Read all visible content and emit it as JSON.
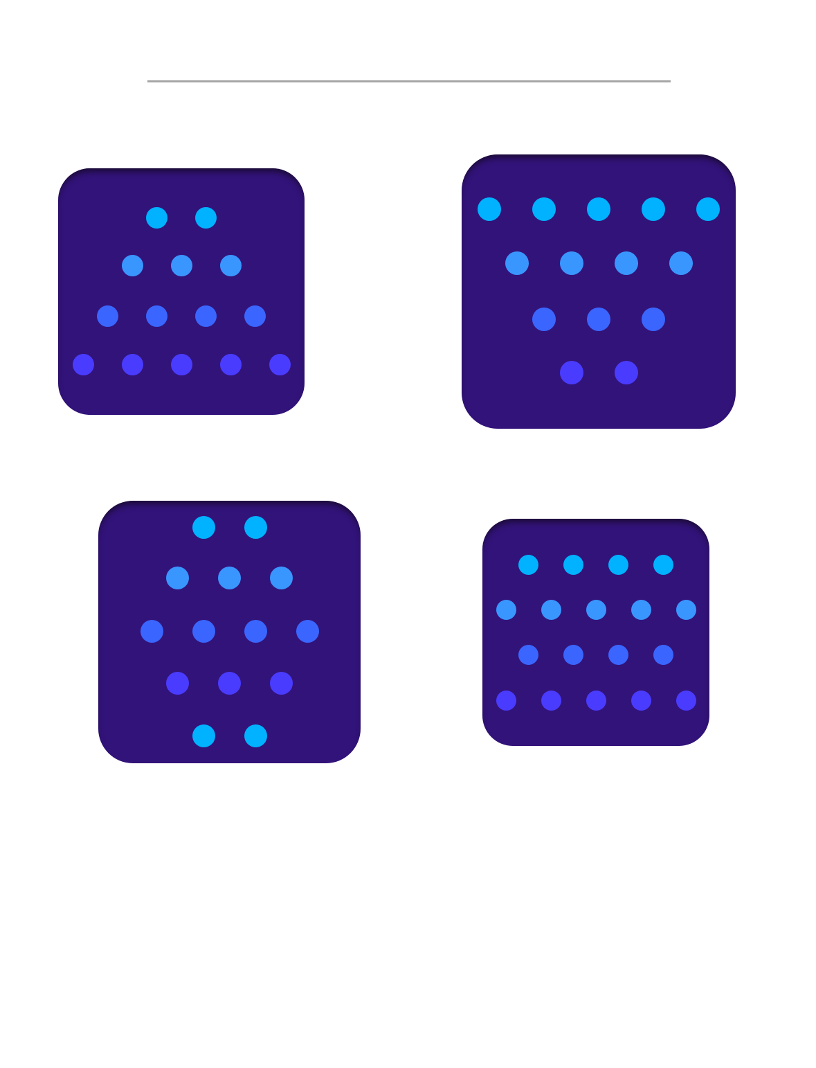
{
  "colors": {
    "background": "#ffffff",
    "divider": "#a6a6a6",
    "card": "#32137a",
    "row_palette": [
      "#00b2ff",
      "#3a96ff",
      "#3a66ff",
      "#4a3cff"
    ]
  },
  "cards": [
    {
      "name": "dot-card-1",
      "rows": [
        2,
        3,
        4,
        5
      ],
      "row_colors": [
        0,
        1,
        2,
        3
      ]
    },
    {
      "name": "dot-card-2",
      "rows": [
        5,
        4,
        3,
        2
      ],
      "row_colors": [
        0,
        1,
        2,
        3
      ]
    },
    {
      "name": "dot-card-3",
      "rows": [
        2,
        3,
        4,
        3,
        2
      ],
      "row_colors": [
        0,
        1,
        2,
        3,
        0
      ]
    },
    {
      "name": "dot-card-4",
      "rows": [
        4,
        5,
        4,
        5
      ],
      "row_colors": [
        0,
        1,
        2,
        3
      ]
    }
  ]
}
